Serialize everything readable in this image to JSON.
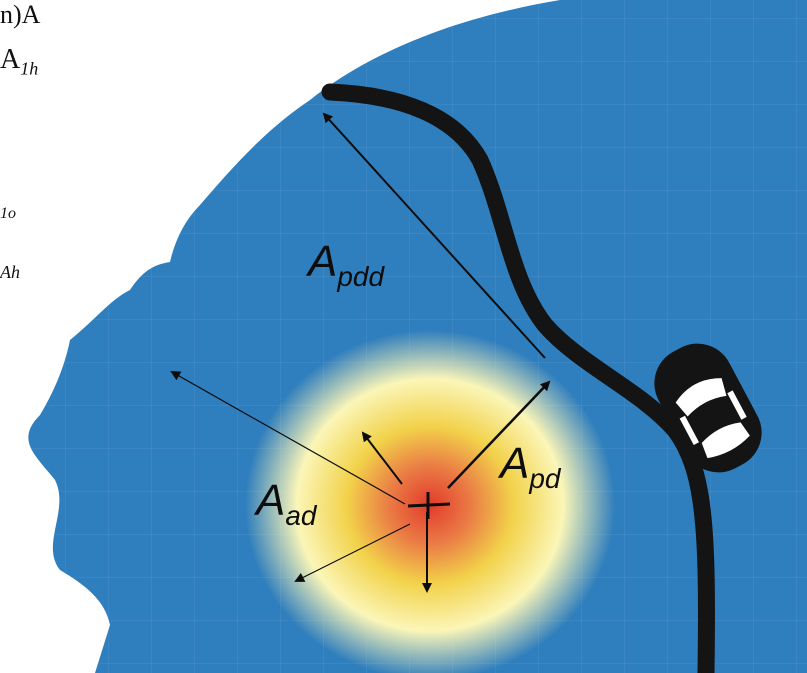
{
  "colors": {
    "head_blue": "#2f7ebd",
    "grid_line": "#5b9bd0",
    "road": "#141414",
    "arrow": "#0d0d0d",
    "heat_center": "#e23b2b",
    "heat_mid": "#f2d24a",
    "heat_outer": "#fbf6b8"
  },
  "text_fragments": {
    "line1": "n)A",
    "line2": "A",
    "line2_sub": "1h",
    "line3": "1o",
    "line4": "Ah"
  },
  "labels": {
    "a_pdd": {
      "main": "A",
      "sub": "pdd"
    },
    "a_pd": {
      "main": "A",
      "sub": "pd"
    },
    "a_ad": {
      "main": "A",
      "sub": "ad"
    }
  },
  "icons": {
    "vehicle": "car-top-view-icon",
    "gaze_center": "crosshair-icon"
  }
}
